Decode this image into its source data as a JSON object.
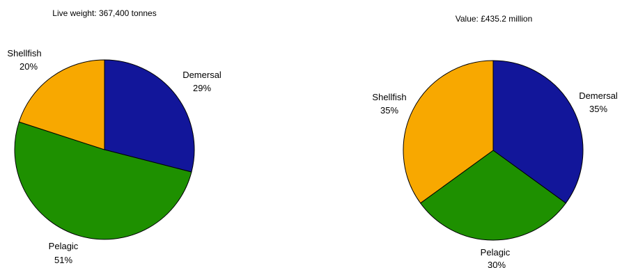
{
  "chart_data": [
    {
      "type": "pie",
      "title": "Live weight: 367,400 tonnes",
      "slices": [
        {
          "label": "Demersal",
          "value": 29,
          "value_label": "29%",
          "color": "#12169A"
        },
        {
          "label": "Pelagic",
          "value": 51,
          "value_label": "51%",
          "color": "#1E9000"
        },
        {
          "label": "Shellfish",
          "value": 20,
          "value_label": "20%",
          "color": "#F8A800"
        }
      ]
    },
    {
      "type": "pie",
      "title": "Value: £435.2 million",
      "slices": [
        {
          "label": "Demersal",
          "value": 35,
          "value_label": "35%",
          "color": "#12169A"
        },
        {
          "label": "Pelagic",
          "value": 30,
          "value_label": "30%",
          "color": "#1E9000"
        },
        {
          "label": "Shellfish",
          "value": 35,
          "value_label": "35%",
          "color": "#F8A800"
        }
      ]
    }
  ]
}
